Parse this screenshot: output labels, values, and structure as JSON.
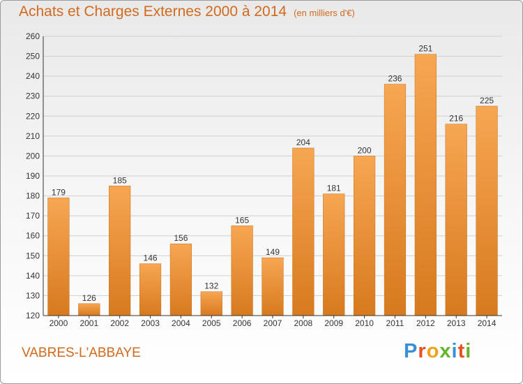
{
  "header": {
    "title": "Achats et Charges Externes 2000 à 2014",
    "subtitle": "(en milliers d'€)"
  },
  "footer": {
    "location": "VABRES-L'ABBAYE",
    "logo_text": "Proxiti"
  },
  "colors": {
    "bar_light": "#f7a652",
    "bar_dark": "#d77a1f",
    "title": "#d2691e",
    "grid": "#cfcfcf",
    "axis": "#333333"
  },
  "chart_data": {
    "type": "bar",
    "title": "Achats et Charges Externes 2000 à 2014",
    "subtitle": "(en milliers d'€)",
    "categories": [
      "2000",
      "2001",
      "2002",
      "2003",
      "2004",
      "2005",
      "2006",
      "2007",
      "2008",
      "2009",
      "2010",
      "2011",
      "2012",
      "2013",
      "2014"
    ],
    "values": [
      179,
      126,
      185,
      146,
      156,
      132,
      165,
      149,
      204,
      181,
      200,
      236,
      251,
      216,
      225
    ],
    "ylim": [
      120,
      260
    ],
    "yticks": [
      120,
      130,
      140,
      150,
      160,
      170,
      180,
      190,
      200,
      210,
      220,
      230,
      240,
      250,
      260
    ],
    "grid": true,
    "xlabel": "",
    "ylabel": ""
  }
}
